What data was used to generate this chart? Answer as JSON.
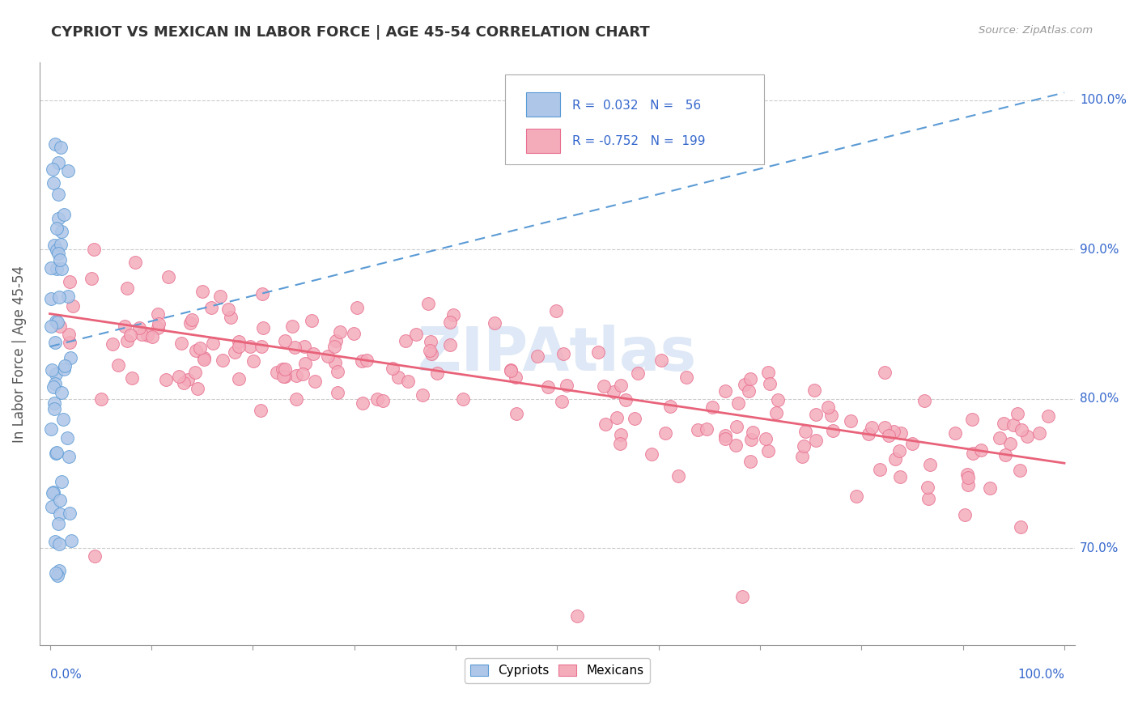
{
  "title": "CYPRIOT VS MEXICAN IN LABOR FORCE | AGE 45-54 CORRELATION CHART",
  "source_text": "Source: ZipAtlas.com",
  "ylabel": "In Labor Force | Age 45-54",
  "xlim": [
    -0.01,
    1.01
  ],
  "ylim": [
    0.635,
    1.025
  ],
  "x_ticks": [
    0.0,
    1.0
  ],
  "x_tick_labels": [
    "0.0%",
    "100.0%"
  ],
  "y_ticks": [
    0.7,
    0.8,
    0.9,
    1.0
  ],
  "y_tick_labels": [
    "70.0%",
    "80.0%",
    "90.0%",
    "100.0%"
  ],
  "cypriot_R": 0.032,
  "cypriot_N": 56,
  "mexican_R": -0.752,
  "mexican_N": 199,
  "cypriot_color": "#aec6e8",
  "cypriot_edge_color": "#5b9bd5",
  "mexican_color": "#f4acbb",
  "mexican_edge_color": "#e87090",
  "cypriot_trend_color": "#5b9bd5",
  "mexican_trend_color": "#e8637a",
  "grid_color": "#cccccc",
  "watermark_color": "#c8daf0",
  "legend_R_color": "#3366cc",
  "ytick_color": "#3366cc",
  "xtick_color": "#3366cc",
  "background_color": "#ffffff",
  "cyp_trend_start_y": 0.835,
  "cyp_trend_end_y": 1.005,
  "mex_trend_start_y": 0.857,
  "mex_trend_end_y": 0.757
}
